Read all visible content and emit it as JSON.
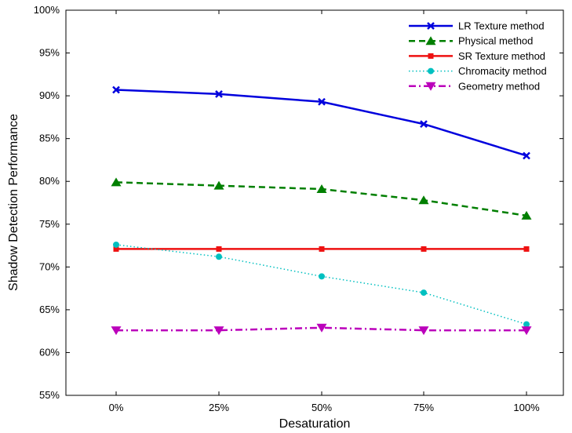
{
  "chart_data": {
    "type": "line",
    "xlabel": "Desaturation",
    "ylabel": "Shadow Detection Performance",
    "categories": [
      "0%",
      "25%",
      "50%",
      "75%",
      "100%"
    ],
    "ylim": [
      55,
      100
    ],
    "yticks": [
      55,
      60,
      65,
      70,
      75,
      80,
      85,
      90,
      95,
      100
    ],
    "ytick_labels": [
      "55%",
      "60%",
      "65%",
      "70%",
      "75%",
      "80%",
      "85%",
      "90%",
      "95%",
      "100%"
    ],
    "grid": false,
    "legend_position": "top-right",
    "series": [
      {
        "name": "LR Texture method",
        "values": [
          90.7,
          90.2,
          89.3,
          86.7,
          83.0
        ],
        "color": "#0000dd",
        "line_style": "solid",
        "marker": "x"
      },
      {
        "name": "Physical method",
        "values": [
          79.9,
          79.5,
          79.1,
          77.8,
          76.0
        ],
        "color": "#007f00",
        "line_style": "dashed",
        "marker": "triangle-up"
      },
      {
        "name": "SR Texture method",
        "values": [
          72.1,
          72.1,
          72.1,
          72.1,
          72.1
        ],
        "color": "#ee1111",
        "line_style": "solid",
        "marker": "square"
      },
      {
        "name": "Chromacity method",
        "values": [
          72.6,
          71.2,
          68.9,
          67.0,
          63.3
        ],
        "color": "#00c0c0",
        "line_style": "dotted",
        "marker": "circle"
      },
      {
        "name": "Geometry method",
        "values": [
          62.6,
          62.6,
          62.9,
          62.6,
          62.6
        ],
        "color": "#bb00bb",
        "line_style": "dashdot",
        "marker": "triangle-down"
      }
    ]
  }
}
